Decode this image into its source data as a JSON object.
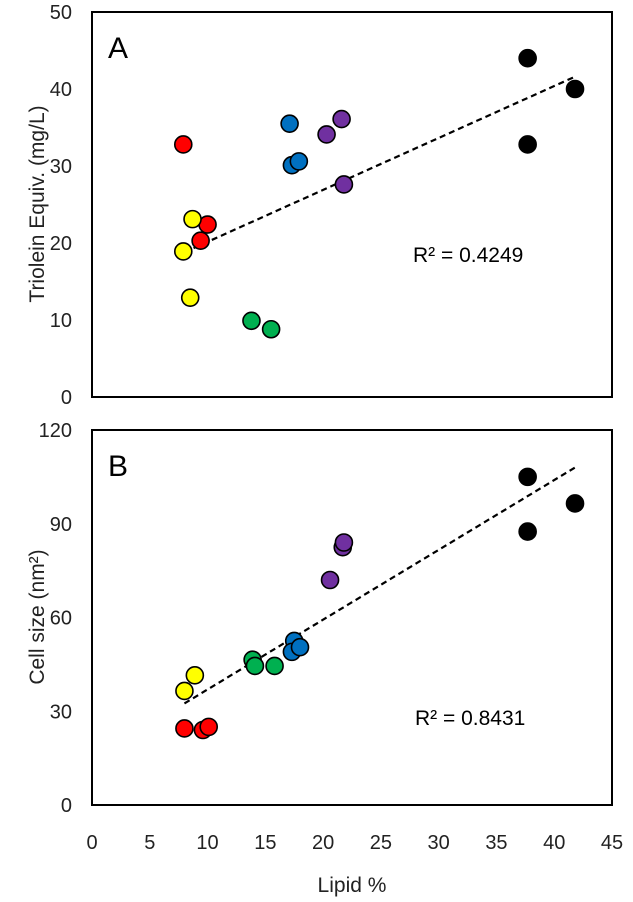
{
  "chart_data": [
    {
      "type": "scatter",
      "label": "A",
      "ylabel": "Triolein Equiv. (mg/L)",
      "xlabel": "",
      "ylim": [
        0,
        50
      ],
      "yticks": [
        "0",
        "10",
        "20",
        "30",
        "40",
        "50"
      ],
      "xlim": [
        0,
        45
      ],
      "xticks": [],
      "grid": false,
      "legend": "none",
      "annotation": "R² = 0.4249",
      "trendline": {
        "x": [
          8,
          41.8
        ],
        "y": [
          18.8,
          41.6
        ]
      },
      "points": [
        {
          "x": 7.9,
          "y": 32.8,
          "color": "#ff0000"
        },
        {
          "x": 9.4,
          "y": 20.3,
          "color": "#ff0000"
        },
        {
          "x": 10.0,
          "y": 22.4,
          "color": "#ff0000"
        },
        {
          "x": 7.9,
          "y": 18.9,
          "color": "#ffff00"
        },
        {
          "x": 8.7,
          "y": 23.1,
          "color": "#ffff00"
        },
        {
          "x": 8.5,
          "y": 12.9,
          "color": "#ffff00"
        },
        {
          "x": 13.8,
          "y": 9.9,
          "color": "#00b050"
        },
        {
          "x": 15.5,
          "y": 8.8,
          "color": "#00b050"
        },
        {
          "x": 17.1,
          "y": 35.5,
          "color": "#0070c0"
        },
        {
          "x": 17.3,
          "y": 30.1,
          "color": "#0070c0"
        },
        {
          "x": 17.9,
          "y": 30.6,
          "color": "#0070c0"
        },
        {
          "x": 20.3,
          "y": 34.1,
          "color": "#7030a0"
        },
        {
          "x": 21.6,
          "y": 36.1,
          "color": "#7030a0"
        },
        {
          "x": 21.8,
          "y": 27.6,
          "color": "#7030a0"
        },
        {
          "x": 37.7,
          "y": 44.0,
          "color": "#000000"
        },
        {
          "x": 37.7,
          "y": 32.8,
          "color": "#000000"
        },
        {
          "x": 41.8,
          "y": 40.0,
          "color": "#000000"
        }
      ]
    },
    {
      "type": "scatter",
      "label": "B",
      "ylabel": "Cell size (nm²)",
      "xlabel": "Lipid %",
      "ylim": [
        0,
        120
      ],
      "yticks": [
        "0",
        "30",
        "60",
        "90",
        "120"
      ],
      "xlim": [
        0,
        45
      ],
      "xticks": [
        "0",
        "5",
        "10",
        "15",
        "20",
        "25",
        "30",
        "35",
        "40",
        "45"
      ],
      "grid": false,
      "legend": "none",
      "annotation": "R² = 0.8431",
      "trendline": {
        "x": [
          8,
          41.8
        ],
        "y": [
          32.5,
          108
        ]
      },
      "points": [
        {
          "x": 8.0,
          "y": 24.5,
          "color": "#ff0000"
        },
        {
          "x": 9.6,
          "y": 24.0,
          "color": "#ff0000"
        },
        {
          "x": 10.1,
          "y": 25.0,
          "color": "#ff0000"
        },
        {
          "x": 8.0,
          "y": 36.5,
          "color": "#ffff00"
        },
        {
          "x": 8.9,
          "y": 41.5,
          "color": "#ffff00"
        },
        {
          "x": 13.9,
          "y": 46.5,
          "color": "#00b050"
        },
        {
          "x": 14.1,
          "y": 44.5,
          "color": "#00b050"
        },
        {
          "x": 15.8,
          "y": 44.5,
          "color": "#00b050"
        },
        {
          "x": 17.5,
          "y": 52.5,
          "color": "#0070c0"
        },
        {
          "x": 17.3,
          "y": 49.0,
          "color": "#0070c0"
        },
        {
          "x": 18.0,
          "y": 50.5,
          "color": "#0070c0"
        },
        {
          "x": 20.6,
          "y": 72.0,
          "color": "#7030a0"
        },
        {
          "x": 21.7,
          "y": 82.5,
          "color": "#7030a0"
        },
        {
          "x": 21.8,
          "y": 84.0,
          "color": "#7030a0"
        },
        {
          "x": 37.7,
          "y": 105.0,
          "color": "#000000"
        },
        {
          "x": 37.7,
          "y": 87.5,
          "color": "#000000"
        },
        {
          "x": 41.8,
          "y": 96.5,
          "color": "#000000"
        }
      ]
    }
  ]
}
